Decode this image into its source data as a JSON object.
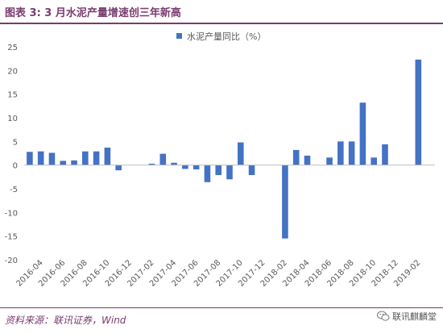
{
  "header": {
    "title": "图表 3: 3 月水泥产量增速创三年新高"
  },
  "footer": {
    "source": "资料来源：联讯证券，Wind",
    "watermark": "联讯麒麟堂",
    "watermark_icon": "wechat-icon"
  },
  "colors": {
    "accent": "#7a3b6f",
    "bar": "#4472c4",
    "axis": "#bfbfbf",
    "text": "#595959"
  },
  "chart_data": {
    "type": "bar",
    "legend_position": "top-center",
    "grid": false,
    "ylim": [
      -20,
      25
    ],
    "yticks": [
      -20,
      -15,
      -10,
      -5,
      0,
      5,
      10,
      15,
      20,
      25
    ],
    "xtick_labels": [
      "2016-04",
      "2016-06",
      "2016-08",
      "2016-10",
      "2016-12",
      "2017-02",
      "2017-04",
      "2017-06",
      "2017-08",
      "2017-10",
      "2017-12",
      "2018-02",
      "2018-04",
      "2018-06",
      "2018-08",
      "2018-10",
      "2018-12",
      "2019-02"
    ],
    "categories": [
      "2016-03",
      "2016-04",
      "2016-05",
      "2016-06",
      "2016-07",
      "2016-08",
      "2016-09",
      "2016-10",
      "2016-11",
      "2016-12",
      "2017-01",
      "2017-02",
      "2017-03",
      "2017-04",
      "2017-05",
      "2017-06",
      "2017-07",
      "2017-08",
      "2017-09",
      "2017-10",
      "2017-11",
      "2017-12",
      "2018-01",
      "2018-02",
      "2018-03",
      "2018-04",
      "2018-05",
      "2018-06",
      "2018-07",
      "2018-08",
      "2018-09",
      "2018-10",
      "2018-11",
      "2018-12",
      "2019-01",
      "2019-02",
      "2019-03"
    ],
    "series": [
      {
        "name": "水泥产量同比（%）",
        "values": [
          2.8,
          2.9,
          2.6,
          0.9,
          1.0,
          2.9,
          2.9,
          3.7,
          -1.1,
          null,
          null,
          0.3,
          2.4,
          0.5,
          -0.8,
          -0.9,
          -3.6,
          -2.1,
          -3.0,
          4.8,
          -2.1,
          null,
          null,
          -15.5,
          3.2,
          2.0,
          null,
          1.6,
          5.0,
          5.0,
          13.2,
          1.6,
          4.4,
          null,
          null,
          22.3,
          null
        ]
      }
    ]
  }
}
